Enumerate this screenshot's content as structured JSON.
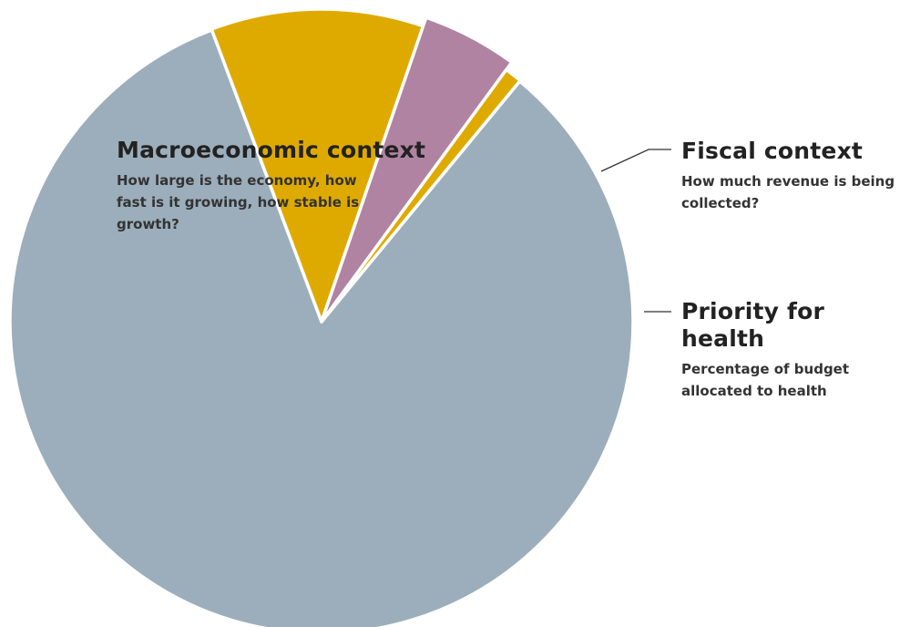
{
  "chart_data": {
    "type": "pie",
    "slices": [
      {
        "key": "macro",
        "label": "Macroeconomic context",
        "description": "How large is the economy, how fast is it growing, how stable is growth?",
        "value": 83.3,
        "color": "#9caebb"
      },
      {
        "key": "fiscal",
        "label": "Fiscal context",
        "description": "How much revenue is being collected?",
        "value": 11.0,
        "color": "#dfaa00"
      },
      {
        "key": "health",
        "label": "Priority for health",
        "description": "Percentage of budget allocated to health",
        "value": 4.8,
        "color": "#b083a2"
      },
      {
        "key": "other",
        "label": "",
        "description": "",
        "value": 0.9,
        "color": "#dfaa00"
      }
    ],
    "legend": "none"
  }
}
